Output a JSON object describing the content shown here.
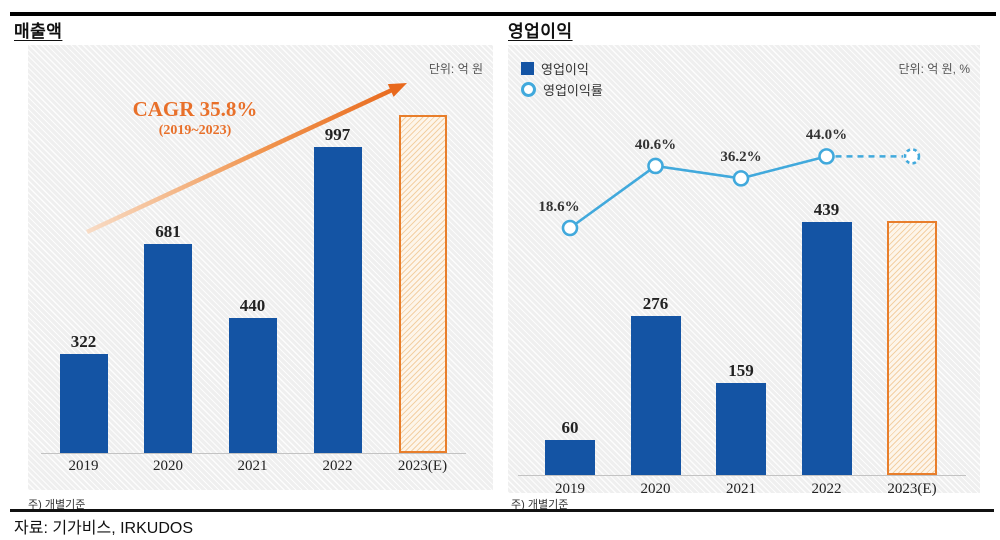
{
  "header": {
    "left_title": "매출액",
    "right_title": "영업이익"
  },
  "footer": {
    "left_note": "주) 개별기준",
    "right_note": "주) 개별기준",
    "source": "자료:  기가비스, IRKUDOS"
  },
  "colors": {
    "bar_blue": "#1454A4",
    "line_blue": "#41A9DC",
    "estimate_orange": "#E87E2B",
    "annotation_orange": "#E8702A"
  },
  "chart_data": [
    {
      "type": "bar",
      "title": "매출액",
      "unit_label": "단위: 억 원",
      "categories": [
        "2019",
        "2020",
        "2021",
        "2022",
        "2023(E)"
      ],
      "values": [
        322,
        681,
        440,
        997,
        null
      ],
      "estimated": {
        "category": "2023(E)",
        "approx_value": 1100,
        "labeled": false,
        "style": "orange-hatched-outline"
      },
      "annotation": {
        "line1": "CAGR 35.8%",
        "line2": "(2019~2023)",
        "shape": "orange-gradient-arrow-up-right"
      },
      "note": "주) 개별기준",
      "grid": false,
      "legend": null,
      "ylim": [
        0,
        1300
      ]
    },
    {
      "type": "bar+line",
      "title": "영업이익",
      "unit_label": "단위: 억 원, %",
      "categories": [
        "2019",
        "2020",
        "2021",
        "2022",
        "2023(E)"
      ],
      "series": [
        {
          "name": "영업이익",
          "type": "bar",
          "values": [
            60,
            276,
            159,
            439,
            null
          ],
          "estimated": {
            "category": "2023(E)",
            "approx_value": 440,
            "labeled": false,
            "style": "orange-hatched-outline"
          }
        },
        {
          "name": "영업이익률",
          "type": "line",
          "values": [
            18.6,
            40.6,
            36.2,
            44.0,
            null
          ],
          "point_labels": [
            "18.6%",
            "40.6%",
            "36.2%",
            "44.0%",
            null
          ],
          "estimated": {
            "category": "2023(E)",
            "approx_value": 44.0,
            "labeled": false,
            "marker": "dashed-circle",
            "segment": "dashed"
          }
        }
      ],
      "legend": [
        {
          "label": "영업이익",
          "marker": "square"
        },
        {
          "label": "영업이익률",
          "marker": "circle"
        }
      ],
      "legend_position": "top-left",
      "note": "주) 개별기준",
      "grid": false,
      "ylim_bar": [
        0,
        520
      ],
      "ylim_line_pct": [
        0,
        60
      ]
    }
  ]
}
